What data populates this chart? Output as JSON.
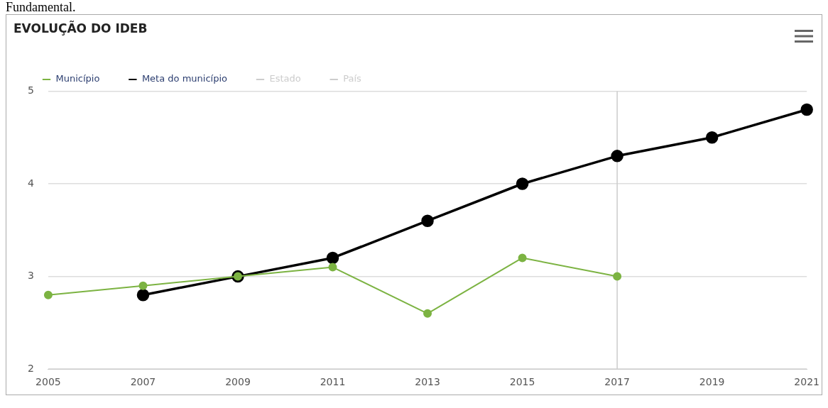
{
  "chart_data": {
    "type": "line",
    "title": "EVOLUÇÃO DO IDEB",
    "annotations": [
      "Fundamental."
    ],
    "categories": [
      "2005",
      "2007",
      "2009",
      "2011",
      "2013",
      "2015",
      "2017",
      "2019",
      "2021"
    ],
    "series": [
      {
        "name": "Município",
        "color": "#7cb342",
        "values": [
          2.8,
          2.9,
          3.0,
          3.1,
          2.6,
          3.2,
          3.0,
          null,
          null
        ]
      },
      {
        "name": "Meta do município",
        "color": "#000000",
        "values": [
          null,
          2.8,
          3.0,
          3.2,
          3.6,
          4.0,
          4.3,
          4.5,
          4.8
        ]
      },
      {
        "name": "Estado",
        "color": "#cccccc",
        "values": [
          null,
          null,
          null,
          null,
          null,
          null,
          null,
          null,
          null
        ]
      },
      {
        "name": "País",
        "color": "#cccccc",
        "values": [
          null,
          null,
          null,
          null,
          null,
          null,
          null,
          null,
          null
        ]
      }
    ],
    "ylim": [
      2,
      5
    ],
    "yticks": [
      2,
      3,
      4,
      5
    ],
    "grid": "y",
    "legend": "top left",
    "marker": "circle",
    "line_style": "solid",
    "ref_lines": [
      {
        "axis": "x",
        "value": "2017",
        "color": "#cccccc"
      }
    ]
  }
}
